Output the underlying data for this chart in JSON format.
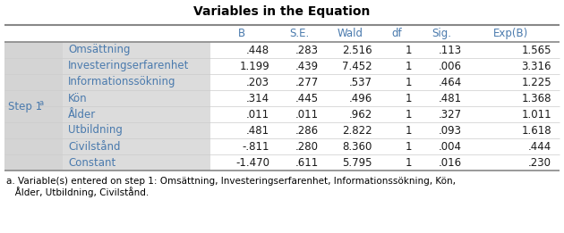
{
  "title": "Variables in the Equation",
  "rows": [
    {
      "label": "Omsättning",
      "B": ".448",
      "SE": ".283",
      "Wald": "2.516",
      "df": "1",
      "Sig": ".113",
      "ExpB": "1.565"
    },
    {
      "label": "Investeringserfarenhet",
      "B": "1.199",
      "SE": ".439",
      "Wald": "7.452",
      "df": "1",
      "Sig": ".006",
      "ExpB": "3.316"
    },
    {
      "label": "Informationssökning",
      "B": ".203",
      "SE": ".277",
      "Wald": ".537",
      "df": "1",
      "Sig": ".464",
      "ExpB": "1.225"
    },
    {
      "label": "Kön",
      "B": ".314",
      "SE": ".445",
      "Wald": ".496",
      "df": "1",
      "Sig": ".481",
      "ExpB": "1.368"
    },
    {
      "label": "Ålder",
      "B": ".011",
      "SE": ".011",
      "Wald": ".962",
      "df": "1",
      "Sig": ".327",
      "ExpB": "1.011"
    },
    {
      "label": "Utbildning",
      "B": ".481",
      "SE": ".286",
      "Wald": "2.822",
      "df": "1",
      "Sig": ".093",
      "ExpB": "1.618"
    },
    {
      "label": "Civilstånd",
      "B": "-.811",
      "SE": ".280",
      "Wald": "8.360",
      "df": "1",
      "Sig": ".004",
      "ExpB": ".444"
    },
    {
      "label": "Constant",
      "B": "-1.470",
      "SE": ".611",
      "Wald": "5.795",
      "df": "1",
      "Sig": ".016",
      "ExpB": ".230"
    }
  ],
  "footnote_line1": "a. Variable(s) entered on step 1: Omsättning, Investeringserfarenhet, Informationssökning, Kön,",
  "footnote_line2": "   Ålder, Utbildning, Civilstånd.",
  "bg_color": "#ffffff",
  "gray_col_bg": "#d4d4d4",
  "label_col_bg": "#dcdcdc",
  "header_text_color": "#4a7aad",
  "label_text_color": "#4a7aad",
  "step_text_color": "#4a7aad",
  "data_text_color": "#1a1a1a",
  "line_color": "#888888",
  "thin_line_color": "#cccccc",
  "title_fontsize": 10,
  "header_fontsize": 8.5,
  "data_fontsize": 8.5,
  "step_fontsize": 8.5,
  "footnote_fontsize": 7.5
}
